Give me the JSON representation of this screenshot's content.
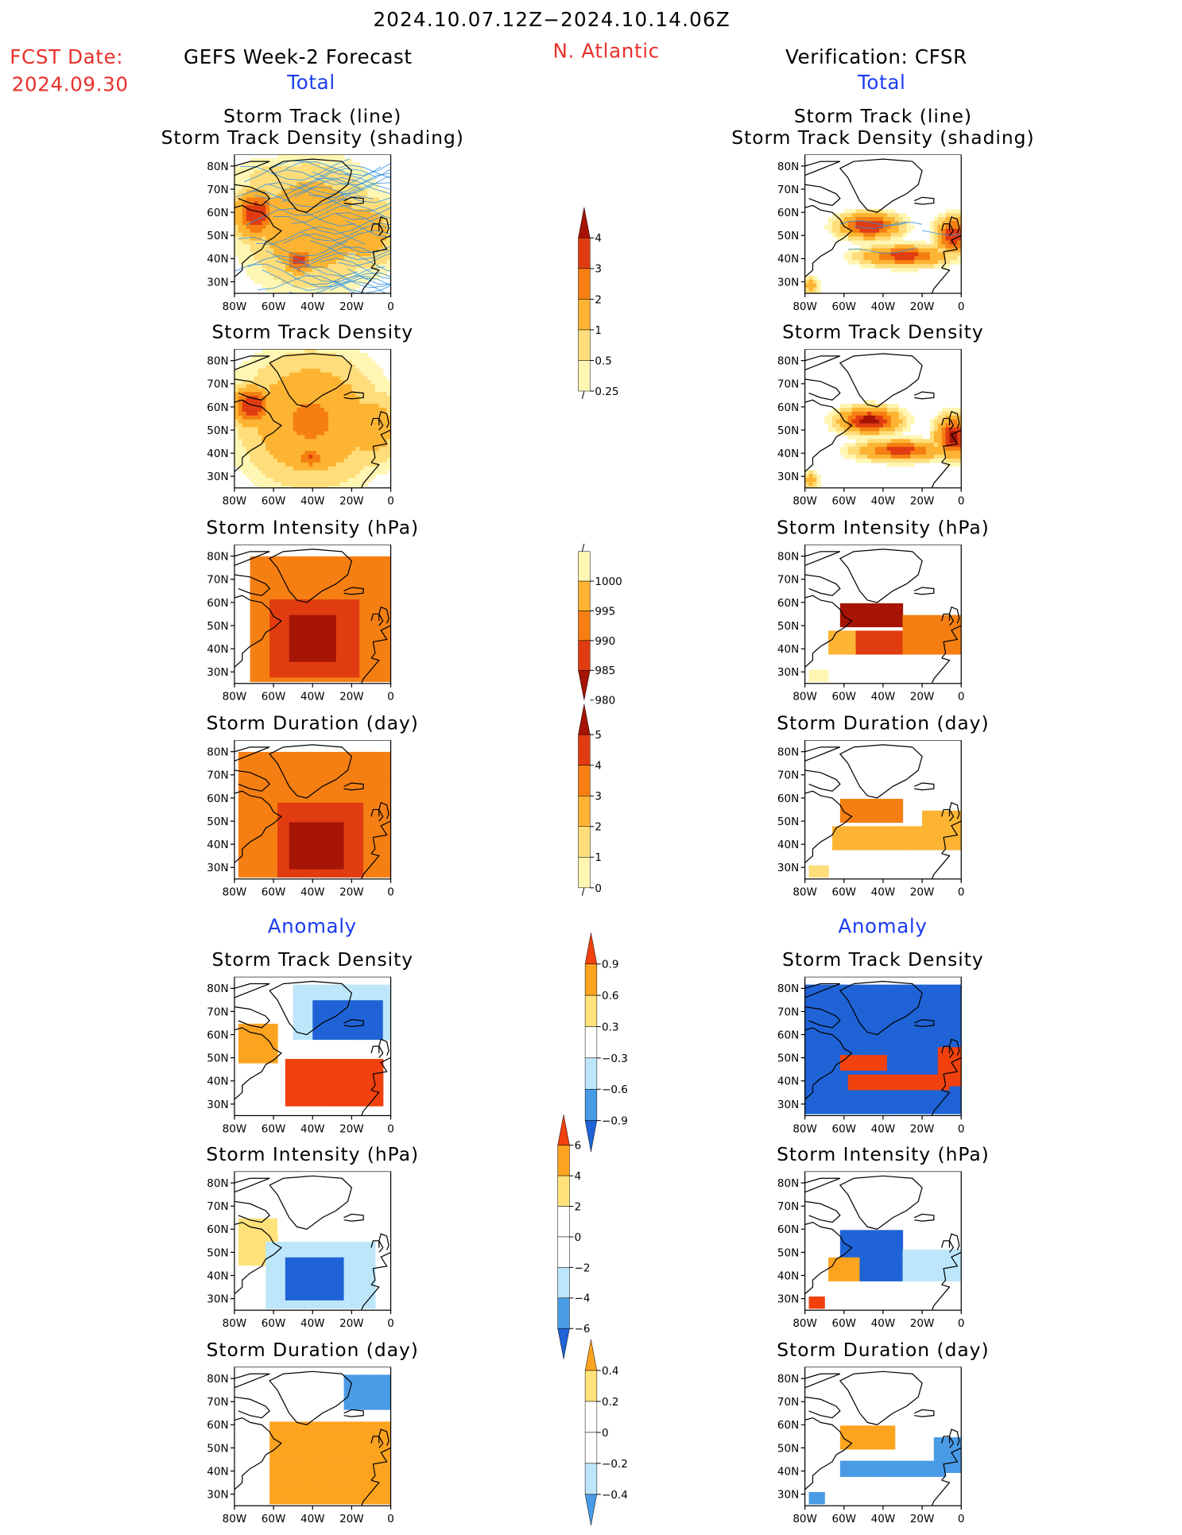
{
  "header": {
    "date_range": "2024.10.07.12Z−2024.10.14.06Z",
    "fcst_label": "FCST Date:",
    "fcst_date": "2024.09.30",
    "left_title": "GEFS Week-2 Forecast",
    "region": "N. Atlantic",
    "right_title": "Verification: CFSR",
    "total_label": "Total",
    "anomaly_label": "Anomaly"
  },
  "panel_titles": {
    "track_line": "Storm Track (line)",
    "track_shading": "Storm Track Density (shading)",
    "density": "Storm Track Density",
    "intensity": "Storm Intensity (hPa)",
    "duration": "Storm Duration (day)"
  },
  "colors": {
    "title_red": "#e8312b",
    "section_blue": "#1c3cf0",
    "density_scale": [
      "#fff6b4",
      "#fedd7a",
      "#fdb433",
      "#f57f12",
      "#e13c11",
      "#a61405"
    ],
    "intensity_scale": [
      "#a61405",
      "#e13c11",
      "#f57f12",
      "#fdb433",
      "#fff6b4"
    ],
    "duration_scale": [
      "#fff6b4",
      "#fedd7a",
      "#fdb433",
      "#f57f12",
      "#e13c11",
      "#a61405"
    ],
    "anomaly_scale": [
      "#1f63d6",
      "#4a9be6",
      "#bde6fa",
      "#ffffff",
      "#ffe27a",
      "#fca31f",
      "#f0410f"
    ]
  },
  "chart_data": [
    {
      "type": "heatmap",
      "name_ref": "gefs-total-track",
      "title": "Storm Track (line)",
      "subtitle": "Storm Track Density (shading)",
      "x_ticks": [
        "80W",
        "60W",
        "40W",
        "20W",
        "0"
      ],
      "y_ticks": [
        "80N",
        "70N",
        "60N",
        "50N",
        "40N",
        "30N"
      ],
      "xlim": [
        -80,
        0
      ],
      "ylim": [
        25,
        85
      ],
      "blobs": [
        {
          "lon": -70,
          "lat": 60,
          "v": 4,
          "rx": 10,
          "ry": 10
        },
        {
          "lon": -48,
          "lat": 40,
          "v": 3.5,
          "rx": 8,
          "ry": 6
        },
        {
          "lon": -42,
          "lat": 55,
          "v": 2,
          "rx": 30,
          "ry": 24
        },
        {
          "lon": -15,
          "lat": 52,
          "v": 1.5,
          "rx": 20,
          "ry": 16
        },
        {
          "lon": -60,
          "lat": 75,
          "v": 0.7,
          "rx": 25,
          "ry": 10
        }
      ],
      "has_tracks": true
    },
    {
      "type": "heatmap",
      "name_ref": "cfsr-total-track",
      "title": "Storm Track (line)",
      "subtitle": "Storm Track Density (shading)",
      "x_ticks": [
        "80W",
        "60W",
        "40W",
        "20W",
        "0"
      ],
      "y_ticks": [
        "80N",
        "70N",
        "60N",
        "50N",
        "40N",
        "30N"
      ],
      "xlim": [
        -80,
        0
      ],
      "ylim": [
        25,
        85
      ],
      "blobs": [
        {
          "lon": -48,
          "lat": 55,
          "v": 4,
          "rx": 14,
          "ry": 5
        },
        {
          "lon": -30,
          "lat": 42,
          "v": 3.5,
          "rx": 20,
          "ry": 4
        },
        {
          "lon": -5,
          "lat": 51,
          "v": 4,
          "rx": 8,
          "ry": 7
        },
        {
          "lon": -78,
          "lat": 29,
          "v": 1.5,
          "rx": 4,
          "ry": 4
        }
      ],
      "has_tracks": true
    },
    {
      "type": "heatmap",
      "name_ref": "gefs-total-density",
      "title": "Storm Track Density",
      "x_ticks": [
        "80W",
        "60W",
        "40W",
        "20W",
        "0"
      ],
      "y_ticks": [
        "80N",
        "70N",
        "60N",
        "50N",
        "40N",
        "30N"
      ],
      "xlim": [
        -80,
        0
      ],
      "ylim": [
        25,
        85
      ],
      "blobs": [
        {
          "lon": -72,
          "lat": 61,
          "v": 4,
          "rx": 10,
          "ry": 8
        },
        {
          "lon": -42,
          "lat": 39,
          "v": 3.2,
          "rx": 7,
          "ry": 5
        },
        {
          "lon": -42,
          "lat": 55,
          "v": 2.2,
          "rx": 32,
          "ry": 26
        },
        {
          "lon": -12,
          "lat": 52,
          "v": 1.6,
          "rx": 18,
          "ry": 16
        },
        {
          "lon": -58,
          "lat": 76,
          "v": 0.6,
          "rx": 25,
          "ry": 8
        }
      ],
      "has_tracks": false
    },
    {
      "type": "heatmap",
      "name_ref": "cfsr-total-density",
      "title": "Storm Track Density",
      "x_ticks": [
        "80W",
        "60W",
        "40W",
        "20W",
        "0"
      ],
      "y_ticks": [
        "80N",
        "70N",
        "60N",
        "50N",
        "40N",
        "30N"
      ],
      "xlim": [
        -80,
        0
      ],
      "ylim": [
        25,
        85
      ],
      "blobs": [
        {
          "lon": -48,
          "lat": 55,
          "v": 4.5,
          "rx": 14,
          "ry": 5
        },
        {
          "lon": -32,
          "lat": 42,
          "v": 3.5,
          "rx": 20,
          "ry": 4
        },
        {
          "lon": -5,
          "lat": 48,
          "v": 4.5,
          "rx": 8,
          "ry": 8
        },
        {
          "lon": -78,
          "lat": 29,
          "v": 1.5,
          "rx": 4,
          "ry": 4
        }
      ],
      "has_tracks": false
    },
    {
      "type": "heatmap",
      "name_ref": "gefs-total-intensity",
      "title": "Storm Intensity (hPa)",
      "x_ticks": [
        "80W",
        "60W",
        "40W",
        "20W",
        "0"
      ],
      "y_ticks": [
        "80N",
        "70N",
        "60N",
        "50N",
        "40N",
        "30N"
      ],
      "xlim": [
        -80,
        0
      ],
      "ylim": [
        25,
        85
      ],
      "scale": "intensity",
      "regions": [
        {
          "lon0": -72,
          "lon1": 0,
          "lat0": 27,
          "lat1": 80,
          "v": 990
        },
        {
          "lon0": -62,
          "lon1": -18,
          "lat0": 28,
          "lat1": 62,
          "v": 985
        },
        {
          "lon0": -52,
          "lon1": -30,
          "lat0": 35,
          "lat1": 55,
          "v": 980
        }
      ]
    },
    {
      "type": "heatmap",
      "name_ref": "cfsr-total-intensity",
      "title": "Storm Intensity (hPa)",
      "x_ticks": [
        "80W",
        "60W",
        "40W",
        "20W",
        "0"
      ],
      "y_ticks": [
        "80N",
        "70N",
        "60N",
        "50N",
        "40N",
        "30N"
      ],
      "xlim": [
        -80,
        0
      ],
      "ylim": [
        25,
        85
      ],
      "scale": "intensity",
      "regions": [
        {
          "lon0": -62,
          "lon1": -32,
          "lat0": 50,
          "lat1": 60,
          "v": 980
        },
        {
          "lon0": -68,
          "lon1": -55,
          "lat0": 38,
          "lat1": 48,
          "v": 995
        },
        {
          "lon0": -55,
          "lon1": -30,
          "lat0": 38,
          "lat1": 48,
          "v": 985
        },
        {
          "lon0": -30,
          "lon1": 0,
          "lat0": 38,
          "lat1": 56,
          "v": 990
        },
        {
          "lon0": -78,
          "lon1": -70,
          "lat0": 26,
          "lat1": 32,
          "v": 1000
        }
      ]
    },
    {
      "type": "heatmap",
      "name_ref": "gefs-total-duration",
      "title": "Storm Duration (day)",
      "x_ticks": [
        "80W",
        "60W",
        "40W",
        "20W",
        "0"
      ],
      "y_ticks": [
        "80N",
        "70N",
        "60N",
        "50N",
        "40N",
        "30N"
      ],
      "xlim": [
        -80,
        0
      ],
      "ylim": [
        25,
        85
      ],
      "scale": "duration",
      "regions": [
        {
          "lon0": -78,
          "lon1": 0,
          "lat0": 27,
          "lat1": 80,
          "v": 3
        },
        {
          "lon0": -58,
          "lon1": -15,
          "lat0": 27,
          "lat1": 58,
          "v": 4
        },
        {
          "lon0": -52,
          "lon1": -25,
          "lat0": 30,
          "lat1": 50,
          "v": 5
        }
      ]
    },
    {
      "type": "heatmap",
      "name_ref": "cfsr-total-duration",
      "title": "Storm Duration (day)",
      "x_ticks": [
        "80W",
        "60W",
        "40W",
        "20W",
        "0"
      ],
      "y_ticks": [
        "80N",
        "70N",
        "60N",
        "50N",
        "40N",
        "30N"
      ],
      "xlim": [
        -80,
        0
      ],
      "ylim": [
        25,
        85
      ],
      "scale": "duration",
      "regions": [
        {
          "lon0": -62,
          "lon1": -32,
          "lat0": 50,
          "lat1": 60,
          "v": 3.5
        },
        {
          "lon0": -66,
          "lon1": -15,
          "lat0": 38,
          "lat1": 48,
          "v": 2.5
        },
        {
          "lon0": -20,
          "lon1": 0,
          "lat0": 38,
          "lat1": 55,
          "v": 2.5
        },
        {
          "lon0": -78,
          "lon1": -70,
          "lat0": 26,
          "lat1": 32,
          "v": 1.5
        }
      ]
    },
    {
      "type": "heatmap",
      "name_ref": "gefs-anom-density",
      "title": "Storm Track Density",
      "x_ticks": [
        "80W",
        "60W",
        "40W",
        "20W",
        "0"
      ],
      "y_ticks": [
        "80N",
        "70N",
        "60N",
        "50N",
        "40N",
        "30N"
      ],
      "xlim": [
        -80,
        0
      ],
      "ylim": [
        25,
        85
      ],
      "scale": "anomaly_density",
      "regions": [
        {
          "lon0": -50,
          "lon1": 0,
          "lat0": 58,
          "lat1": 82,
          "v": -0.5
        },
        {
          "lon0": -40,
          "lon1": -5,
          "lat0": 58,
          "lat1": 75,
          "v": -1
        },
        {
          "lon0": -78,
          "lon1": -60,
          "lat0": 48,
          "lat1": 66,
          "v": 0.7
        },
        {
          "lon0": -55,
          "lon1": -5,
          "lat0": 30,
          "lat1": 50,
          "v": 1
        }
      ]
    },
    {
      "type": "heatmap",
      "name_ref": "cfsr-anom-density",
      "title": "Storm Track Density",
      "x_ticks": [
        "80W",
        "60W",
        "40W",
        "20W",
        "0"
      ],
      "y_ticks": [
        "80N",
        "70N",
        "60N",
        "50N",
        "40N",
        "30N"
      ],
      "xlim": [
        -80,
        0
      ],
      "ylim": [
        25,
        85
      ],
      "scale": "anomaly_density",
      "regions": [
        {
          "lon0": -80,
          "lon1": 0,
          "lat0": 27,
          "lat1": 82,
          "v": -1
        },
        {
          "lon0": -62,
          "lon1": -40,
          "lat0": 45,
          "lat1": 52,
          "v": 1
        },
        {
          "lon0": -58,
          "lon1": -8,
          "lat0": 36,
          "lat1": 44,
          "v": 1
        },
        {
          "lon0": -12,
          "lon1": 0,
          "lat0": 38,
          "lat1": 55,
          "v": 1
        }
      ]
    },
    {
      "type": "heatmap",
      "name_ref": "gefs-anom-intensity",
      "title": "Storm Intensity (hPa)",
      "x_ticks": [
        "80W",
        "60W",
        "40W",
        "20W",
        "0"
      ],
      "y_ticks": [
        "80N",
        "70N",
        "60N",
        "50N",
        "40N",
        "30N"
      ],
      "xlim": [
        -80,
        0
      ],
      "ylim": [
        25,
        85
      ],
      "scale": "anomaly_intensity",
      "regions": [
        {
          "lon0": -78,
          "lon1": 0,
          "lat0": 58,
          "lat1": 82,
          "v": 1
        },
        {
          "lon0": -78,
          "lon1": -60,
          "lat0": 45,
          "lat1": 65,
          "v": 3
        },
        {
          "lon0": -65,
          "lon1": -10,
          "lat0": 27,
          "lat1": 56,
          "v": -3
        },
        {
          "lon0": -55,
          "lon1": -25,
          "lat0": 30,
          "lat1": 48,
          "v": -7
        }
      ]
    },
    {
      "type": "heatmap",
      "name_ref": "cfsr-anom-intensity",
      "title": "Storm Intensity (hPa)",
      "x_ticks": [
        "80W",
        "60W",
        "40W",
        "20W",
        "0"
      ],
      "y_ticks": [
        "80N",
        "70N",
        "60N",
        "50N",
        "40N",
        "30N"
      ],
      "xlim": [
        -80,
        0
      ],
      "ylim": [
        25,
        85
      ],
      "scale": "anomaly_intensity",
      "regions": [
        {
          "lon0": -62,
          "lon1": -32,
          "lat0": 49,
          "lat1": 60,
          "v": -7
        },
        {
          "lon0": -68,
          "lon1": -52,
          "lat0": 38,
          "lat1": 48,
          "v": 5
        },
        {
          "lon0": -52,
          "lon1": -30,
          "lat0": 38,
          "lat1": 48,
          "v": -7
        },
        {
          "lon0": -30,
          "lon1": 0,
          "lat0": 38,
          "lat1": 52,
          "v": -2
        },
        {
          "lon0": -78,
          "lon1": -72,
          "lat0": 26,
          "lat1": 32,
          "v": 7
        }
      ]
    },
    {
      "type": "heatmap",
      "name_ref": "gefs-anom-duration",
      "title": "Storm Duration (day)",
      "x_ticks": [
        "80W",
        "60W",
        "40W",
        "20W",
        "0"
      ],
      "y_ticks": [
        "80N",
        "70N",
        "60N",
        "50N",
        "40N",
        "30N"
      ],
      "xlim": [
        -80,
        0
      ],
      "ylim": [
        25,
        85
      ],
      "scale": "anomaly_duration",
      "regions": [
        {
          "lon0": -78,
          "lon1": 0,
          "lat0": 58,
          "lat1": 82,
          "v": 0.1
        },
        {
          "lon0": -25,
          "lon1": 0,
          "lat0": 68,
          "lat1": 82,
          "v": -0.5
        },
        {
          "lon0": -78,
          "lon1": -58,
          "lat0": 27,
          "lat1": 62,
          "v": -0.1
        },
        {
          "lon0": -62,
          "lon1": 0,
          "lat0": 27,
          "lat1": 62,
          "v": 0.5
        }
      ]
    },
    {
      "type": "heatmap",
      "name_ref": "cfsr-anom-duration",
      "title": "Storm Duration (day)",
      "x_ticks": [
        "80W",
        "60W",
        "40W",
        "20W",
        "0"
      ],
      "y_ticks": [
        "80N",
        "70N",
        "60N",
        "50N",
        "40N",
        "30N"
      ],
      "xlim": [
        -80,
        0
      ],
      "ylim": [
        25,
        85
      ],
      "scale": "anomaly_duration",
      "regions": [
        {
          "lon0": -62,
          "lon1": -36,
          "lat0": 50,
          "lat1": 60,
          "v": 0.5
        },
        {
          "lon0": -62,
          "lon1": -10,
          "lat0": 38,
          "lat1": 46,
          "v": -0.5
        },
        {
          "lon0": -15,
          "lon1": 0,
          "lat0": 40,
          "lat1": 56,
          "v": -0.5
        },
        {
          "lon0": -78,
          "lon1": -72,
          "lat0": 26,
          "lat1": 32,
          "v": -0.5
        }
      ]
    }
  ],
  "colorbars": [
    {
      "name_ref": "cb-density",
      "labels": [
        "4",
        "3",
        "2",
        "1",
        "0.5",
        "0.25"
      ]
    },
    {
      "name_ref": "cb-intensity",
      "labels": [
        "1000",
        "995",
        "990",
        "985",
        "980"
      ]
    },
    {
      "name_ref": "cb-duration",
      "labels": [
        "5",
        "4",
        "3",
        "2",
        "1",
        "0"
      ]
    },
    {
      "name_ref": "cb-anom-density",
      "labels": [
        "0.9",
        "0.6",
        "0.3",
        "−0.3",
        "−0.6",
        "−0.9"
      ]
    },
    {
      "name_ref": "cb-anom-intensity",
      "labels": [
        "6",
        "4",
        "2",
        "0",
        "−2",
        "−4",
        "−6"
      ]
    },
    {
      "name_ref": "cb-anom-duration",
      "labels": [
        "0.4",
        "0.2",
        "0",
        "−0.2",
        "−0.4"
      ]
    }
  ]
}
